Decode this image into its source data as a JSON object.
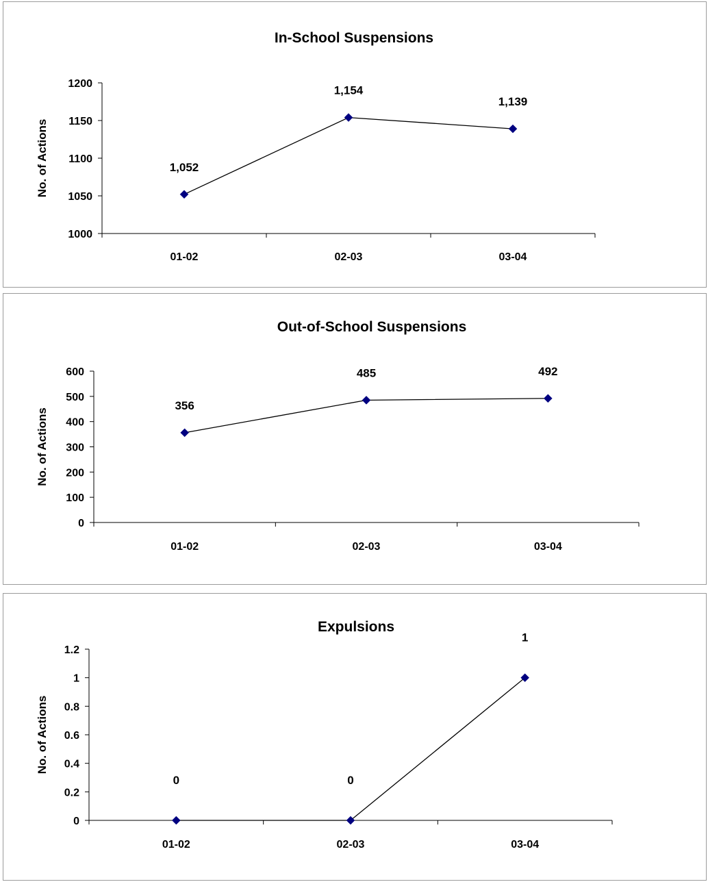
{
  "chart_data": [
    {
      "type": "line",
      "title": "In-School Suspensions",
      "ylabel": "No. of Actions",
      "categories": [
        "01-02",
        "02-03",
        "03-04"
      ],
      "values": [
        1052,
        1154,
        1139
      ],
      "data_labels": [
        "1,052",
        "1,154",
        "1,139"
      ],
      "ylim": [
        1000,
        1200
      ],
      "yticks": [
        1000,
        1050,
        1100,
        1150,
        1200
      ],
      "ytick_labels": [
        "1000",
        "1050",
        "1100",
        "1150",
        "1200"
      ],
      "grid": false,
      "legend": false,
      "line_color": "#000000",
      "marker_color": "#000080",
      "marker": "diamond"
    },
    {
      "type": "line",
      "title": "Out-of-School Suspensions",
      "ylabel": "No. of Actions",
      "categories": [
        "01-02",
        "02-03",
        "03-04"
      ],
      "values": [
        356,
        485,
        492
      ],
      "data_labels": [
        "356",
        "485",
        "492"
      ],
      "ylim": [
        0,
        600
      ],
      "yticks": [
        0,
        100,
        200,
        300,
        400,
        500,
        600
      ],
      "ytick_labels": [
        "0",
        "100",
        "200",
        "300",
        "400",
        "500",
        "600"
      ],
      "grid": false,
      "legend": false,
      "line_color": "#000000",
      "marker_color": "#000080",
      "marker": "diamond"
    },
    {
      "type": "line",
      "title": "Expulsions",
      "ylabel": "No. of Actions",
      "categories": [
        "01-02",
        "02-03",
        "03-04"
      ],
      "values": [
        0,
        0,
        1
      ],
      "data_labels": [
        "0",
        "0",
        "1"
      ],
      "ylim": [
        0,
        1.2
      ],
      "yticks": [
        0,
        0.2,
        0.4,
        0.6,
        0.8,
        1,
        1.2
      ],
      "ytick_labels": [
        "0",
        "0.2",
        "0.4",
        "0.6",
        "0.8",
        "1",
        "1.2"
      ],
      "grid": false,
      "legend": false,
      "line_color": "#000000",
      "marker_color": "#000080",
      "marker": "diamond"
    }
  ]
}
